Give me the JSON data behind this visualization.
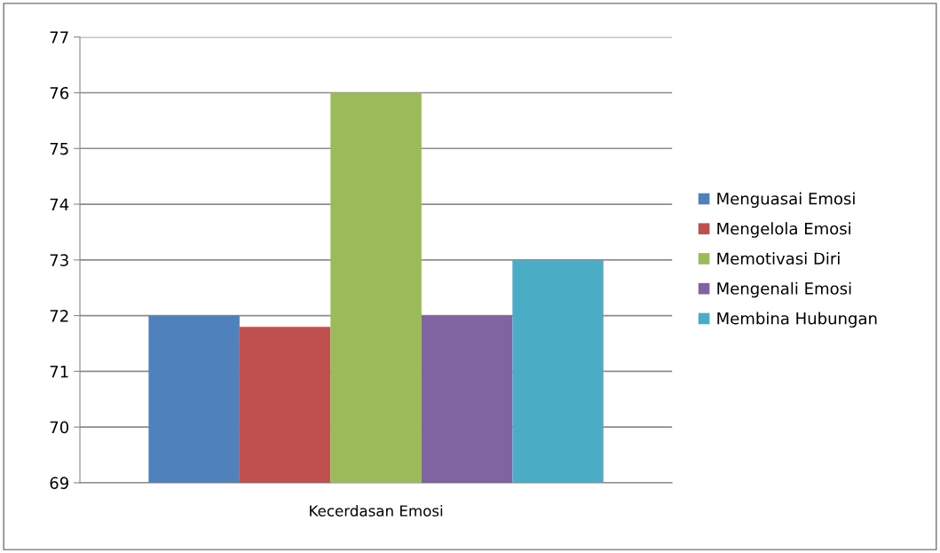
{
  "chart_data": {
    "type": "bar",
    "categories": [
      "Kecerdasan Emosi"
    ],
    "series": [
      {
        "name": "Menguasai Emosi",
        "color": "#4f81bd",
        "values": [
          72
        ]
      },
      {
        "name": "Mengelola Emosi",
        "color": "#c0504d",
        "values": [
          71.8
        ]
      },
      {
        "name": "Memotivasi Diri",
        "color": "#9bbb59",
        "values": [
          76
        ]
      },
      {
        "name": "Mengenali Emosi",
        "color": "#8064a2",
        "values": [
          72
        ]
      },
      {
        "name": "Membina Hubungan",
        "color": "#4bacc6",
        "values": [
          73
        ]
      }
    ],
    "ylim": [
      69,
      77
    ],
    "yticks": [
      69,
      70,
      71,
      72,
      73,
      74,
      75,
      76,
      77
    ],
    "grid": "y",
    "legend": "right"
  }
}
